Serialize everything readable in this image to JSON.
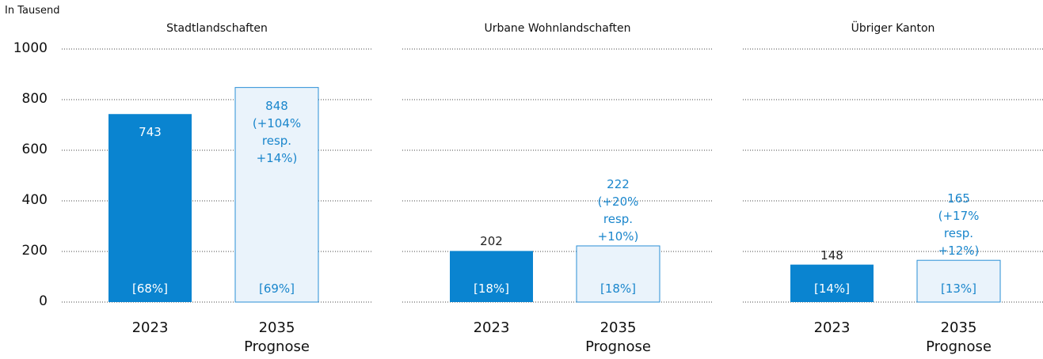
{
  "chart_data": [
    {
      "type": "bar",
      "ylabel": "In Tausend",
      "title": "Stadtlandschaften",
      "categories": [
        "2023",
        "2035 Prognose"
      ],
      "values": [
        743,
        848
      ],
      "value_labels": [
        "743",
        "848 (+104% resp. +14%)"
      ],
      "share_labels": [
        "[68%]",
        "[69%]"
      ],
      "colors": [
        "#0a84d0",
        "#eaf3fb"
      ],
      "ylim": [
        0,
        1000
      ],
      "yticks": [
        0,
        200,
        400,
        600,
        800,
        1000
      ]
    },
    {
      "type": "bar",
      "title": "Urbane Wohnlandschaften",
      "categories": [
        "2023",
        "2035 Prognose"
      ],
      "values": [
        202,
        222
      ],
      "value_labels": [
        "202",
        "222 (+20% resp. +10%)"
      ],
      "share_labels": [
        "[18%]",
        "[18%]"
      ],
      "colors": [
        "#0a84d0",
        "#eaf3fb"
      ],
      "ylim": [
        0,
        1000
      ],
      "yticks": [
        0,
        200,
        400,
        600,
        800,
        1000
      ]
    },
    {
      "type": "bar",
      "title": "Übriger Kanton",
      "categories": [
        "2023",
        "2035 Prognose"
      ],
      "values": [
        148,
        165
      ],
      "value_labels": [
        "148",
        "165 (+17% resp. +12%)"
      ],
      "share_labels": [
        "[14%]",
        "[13%]"
      ],
      "colors": [
        "#0a84d0",
        "#eaf3fb"
      ],
      "ylim": [
        0,
        1000
      ],
      "yticks": [
        0,
        200,
        400,
        600,
        800,
        1000
      ]
    }
  ]
}
